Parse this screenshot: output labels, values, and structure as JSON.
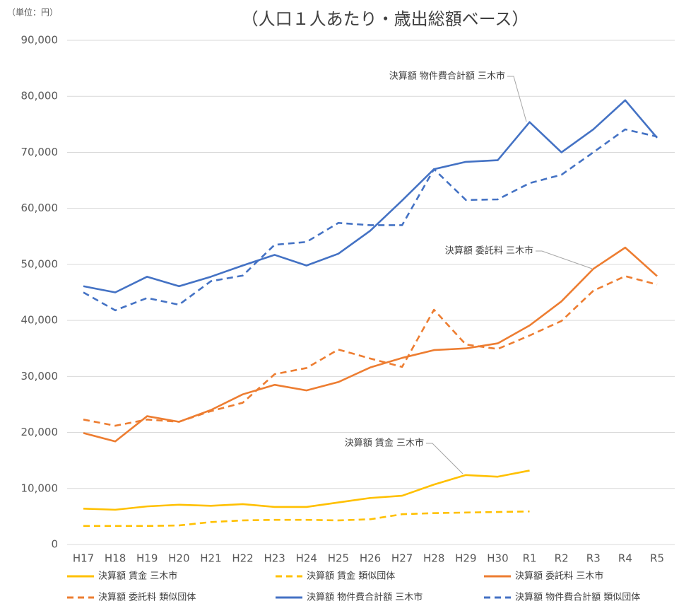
{
  "chart_data": {
    "type": "line",
    "title": "（人口１人あたり・歳出総額ベース）",
    "unit_label": "（単位：円）",
    "categories": [
      "H17",
      "H18",
      "H19",
      "H20",
      "H21",
      "H22",
      "H23",
      "H24",
      "H25",
      "H26",
      "H27",
      "H28",
      "H29",
      "H30",
      "R1",
      "R2",
      "R3",
      "R4",
      "R5"
    ],
    "ylim": [
      0,
      90000
    ],
    "yticks": [
      0,
      {
        "value": 10000,
        "label": "10,000"
      },
      {
        "value": 20000,
        "label": "20,000"
      },
      {
        "value": 30000,
        "label": "30,000"
      },
      {
        "value": 40000,
        "label": "40,000"
      },
      {
        "value": 50000,
        "label": "50,000"
      },
      {
        "value": 60000,
        "label": "60,000"
      },
      {
        "value": 70000,
        "label": "70,000"
      },
      {
        "value": 80000,
        "label": "80,000"
      },
      {
        "value": 90000,
        "label": "90,000"
      }
    ],
    "grid": true,
    "legend": "bottom",
    "series": [
      {
        "name": "決算額 賃金 三木市",
        "color": "#ffc000",
        "style": "solid",
        "values": [
          6400,
          6200,
          6800,
          7100,
          6900,
          7200,
          6700,
          6700,
          7500,
          8300,
          8700,
          10700,
          12400,
          12100,
          13200,
          null,
          null,
          null,
          null
        ]
      },
      {
        "name": "決算額 賃金 類似団体",
        "color": "#ffc000",
        "style": "dashed",
        "values": [
          3300,
          3300,
          3300,
          3400,
          4000,
          4300,
          4400,
          4400,
          4300,
          4500,
          5400,
          5600,
          5700,
          5800,
          5900,
          null,
          null,
          null,
          null
        ]
      },
      {
        "name": "決算額 委託料 三木市",
        "color": "#ed7d31",
        "style": "solid",
        "values": [
          19900,
          18400,
          22900,
          21900,
          24000,
          26800,
          28500,
          27500,
          29000,
          31600,
          33300,
          34700,
          35000,
          35900,
          39100,
          43400,
          49200,
          53000,
          47900
        ]
      },
      {
        "name": "決算額 委託料 類似団体",
        "color": "#ed7d31",
        "style": "dashed",
        "values": [
          22300,
          21200,
          22300,
          21900,
          23800,
          25300,
          30400,
          31500,
          34800,
          33200,
          31700,
          41900,
          35700,
          34900,
          37300,
          39900,
          45300,
          47900,
          46400
        ]
      },
      {
        "name": "決算額 物件費合計額 三木市",
        "color": "#4472c4",
        "style": "solid",
        "values": [
          46100,
          45000,
          47800,
          46100,
          47800,
          49800,
          51700,
          49800,
          51900,
          56000,
          61400,
          67000,
          68300,
          68600,
          75400,
          70000,
          74100,
          79300,
          72600
        ]
      },
      {
        "name": "決算額 物件費合計額 類似団体",
        "color": "#4472c4",
        "style": "dashed",
        "values": [
          45000,
          41800,
          44000,
          42800,
          47000,
          48000,
          53500,
          54000,
          57400,
          57000,
          57000,
          67000,
          61500,
          61600,
          64500,
          66000,
          70000,
          74100,
          72800
        ]
      }
    ],
    "annotations": [
      "決算額 物件費合計額 三木市",
      "決算額 委託料 三木市",
      "決算額 賃金 三木市"
    ]
  }
}
